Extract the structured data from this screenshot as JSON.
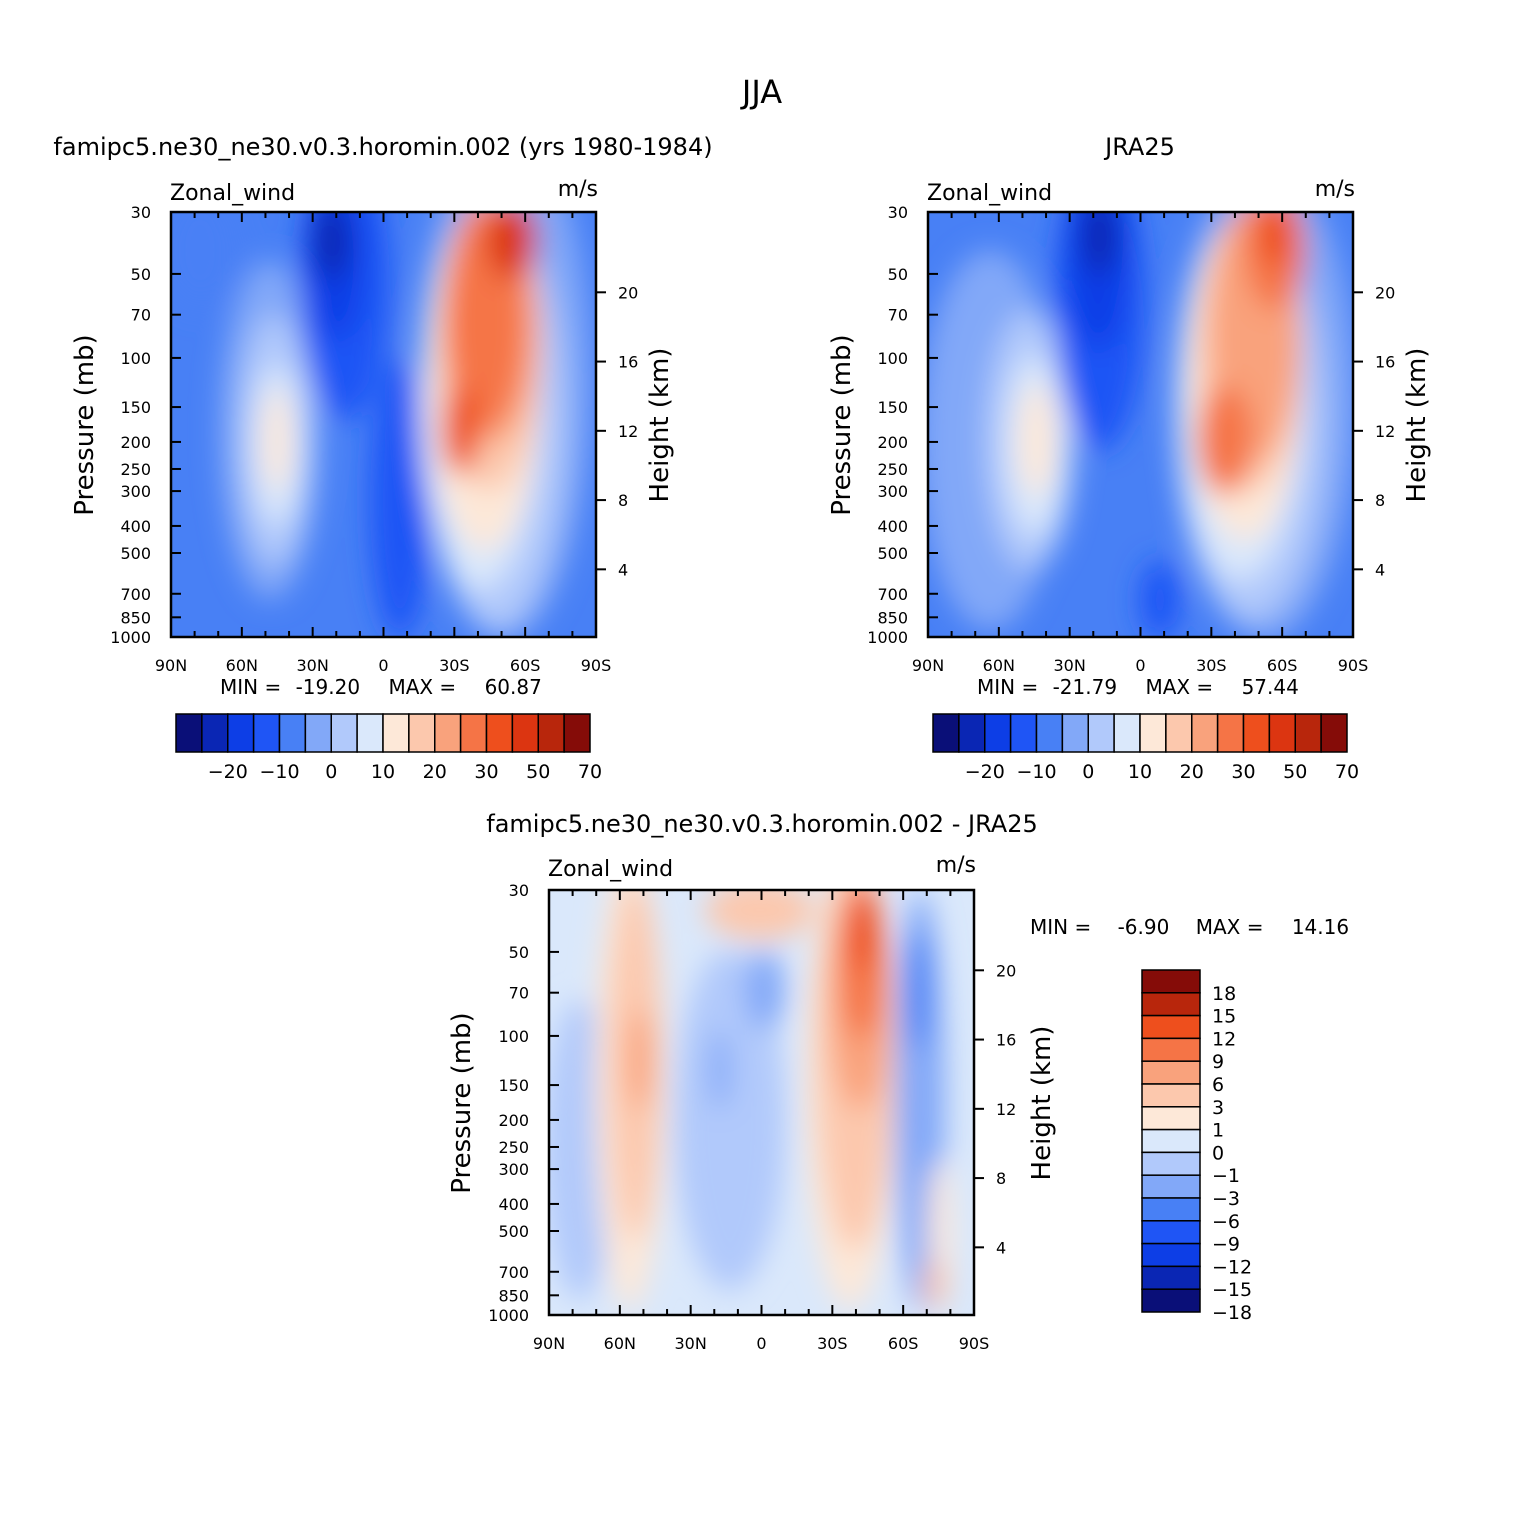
{
  "figure_title": "JJA",
  "chart_data": [
    {
      "type": "heatmap",
      "panel": "model",
      "title": "famipc5.ne30_ne30.v0.3.horomin.002 (yrs 1980-1984)",
      "variable_label": "Zonal_wind",
      "units_label": "m/s",
      "ylabel": "Pressure (mb)",
      "ylabel_right": "Height (km)",
      "y_scale": "log",
      "ylim": [
        1000,
        30
      ],
      "xlim": [
        "90N",
        "90S"
      ],
      "x_ticks": [
        "90N",
        "60N",
        "30N",
        "0",
        "30S",
        "60S",
        "90S"
      ],
      "y_ticks": [
        30,
        50,
        70,
        100,
        150,
        200,
        250,
        300,
        400,
        500,
        700,
        850,
        1000
      ],
      "y_ticks_right": [
        4,
        8,
        12,
        16,
        20
      ],
      "min_label": "MIN =",
      "min_value": "-19.20",
      "max_label": "MAX =",
      "max_value": "60.87",
      "features": [
        {
          "lat": -55,
          "p": 40,
          "value": 57
        },
        {
          "lat": -27,
          "p": 180,
          "value": 42
        },
        {
          "lat": -20,
          "p": 40,
          "value": -19
        },
        {
          "lat": 45,
          "p": 200,
          "value": 18
        }
      ]
    },
    {
      "type": "heatmap",
      "panel": "obs",
      "title": "JRA25",
      "variable_label": "Zonal_wind",
      "units_label": "m/s",
      "ylabel": "Pressure (mb)",
      "ylabel_right": "Height (km)",
      "y_scale": "log",
      "ylim": [
        1000,
        30
      ],
      "xlim": [
        "90N",
        "90S"
      ],
      "x_ticks": [
        "90N",
        "60N",
        "30N",
        "0",
        "30S",
        "60S",
        "90S"
      ],
      "y_ticks": [
        30,
        50,
        70,
        100,
        150,
        200,
        250,
        300,
        400,
        500,
        700,
        850,
        1000
      ],
      "y_ticks_right": [
        4,
        8,
        12,
        16,
        20
      ],
      "min_label": "MIN =",
      "min_value": "-21.79",
      "max_label": "MAX =",
      "max_value": "57.44",
      "features": [
        {
          "lat": -55,
          "p": 40,
          "value": 55
        },
        {
          "lat": -30,
          "p": 200,
          "value": 42
        },
        {
          "lat": -15,
          "p": 35,
          "value": -21
        },
        {
          "lat": 42,
          "p": 200,
          "value": 20
        }
      ]
    },
    {
      "type": "heatmap",
      "panel": "difference",
      "title": "famipc5.ne30_ne30.v0.3.horomin.002 - JRA25",
      "variable_label": "Zonal_wind",
      "units_label": "m/s",
      "ylabel": "Pressure (mb)",
      "ylabel_right": "Height (km)",
      "y_scale": "log",
      "ylim": [
        1000,
        30
      ],
      "xlim": [
        "90N",
        "90S"
      ],
      "x_ticks": [
        "90N",
        "60N",
        "30N",
        "0",
        "30S",
        "60S",
        "90S"
      ],
      "y_ticks": [
        30,
        50,
        70,
        100,
        150,
        200,
        250,
        300,
        400,
        500,
        700,
        850,
        1000
      ],
      "y_ticks_right": [
        4,
        8,
        12,
        16,
        20
      ],
      "min_label": "MIN =",
      "min_value": "-6.90",
      "max_label": "MAX =",
      "max_value": "14.16",
      "features": [
        {
          "lat": -45,
          "p": 50,
          "value": 14
        },
        {
          "lat": -65,
          "p": 100,
          "value": -6
        },
        {
          "lat": 50,
          "p": 150,
          "value": 5
        },
        {
          "lat": -10,
          "p": 40,
          "value": 3
        }
      ]
    }
  ],
  "colorbar_main": {
    "labels": [
      "-20",
      "-10",
      "0",
      "10",
      "20",
      "30",
      "50",
      "70"
    ],
    "colors": [
      "#0a0f78",
      "#0a26b4",
      "#0d3ee6",
      "#1f55f5",
      "#4880f5",
      "#82a8f8",
      "#b1c9fb",
      "#dae8fb",
      "#fde8d8",
      "#fcc8ad",
      "#f9a27c",
      "#f57446",
      "#ee4f1d",
      "#dc3511",
      "#b8260c",
      "#850c08"
    ]
  },
  "colorbar_diff": {
    "labels": [
      "18",
      "15",
      "12",
      "9",
      "6",
      "3",
      "1",
      "0",
      "-1",
      "-3",
      "-6",
      "-9",
      "-12",
      "-15",
      "-18"
    ],
    "colors": [
      "#850c08",
      "#b8260c",
      "#ee4f1d",
      "#f57446",
      "#f9a27c",
      "#fcc8ad",
      "#fde8d8",
      "#dae8fb",
      "#b1c9fb",
      "#82a8f8",
      "#4880f5",
      "#1f55f5",
      "#0d3ee6",
      "#0a26b4",
      "#0a0f78"
    ]
  }
}
